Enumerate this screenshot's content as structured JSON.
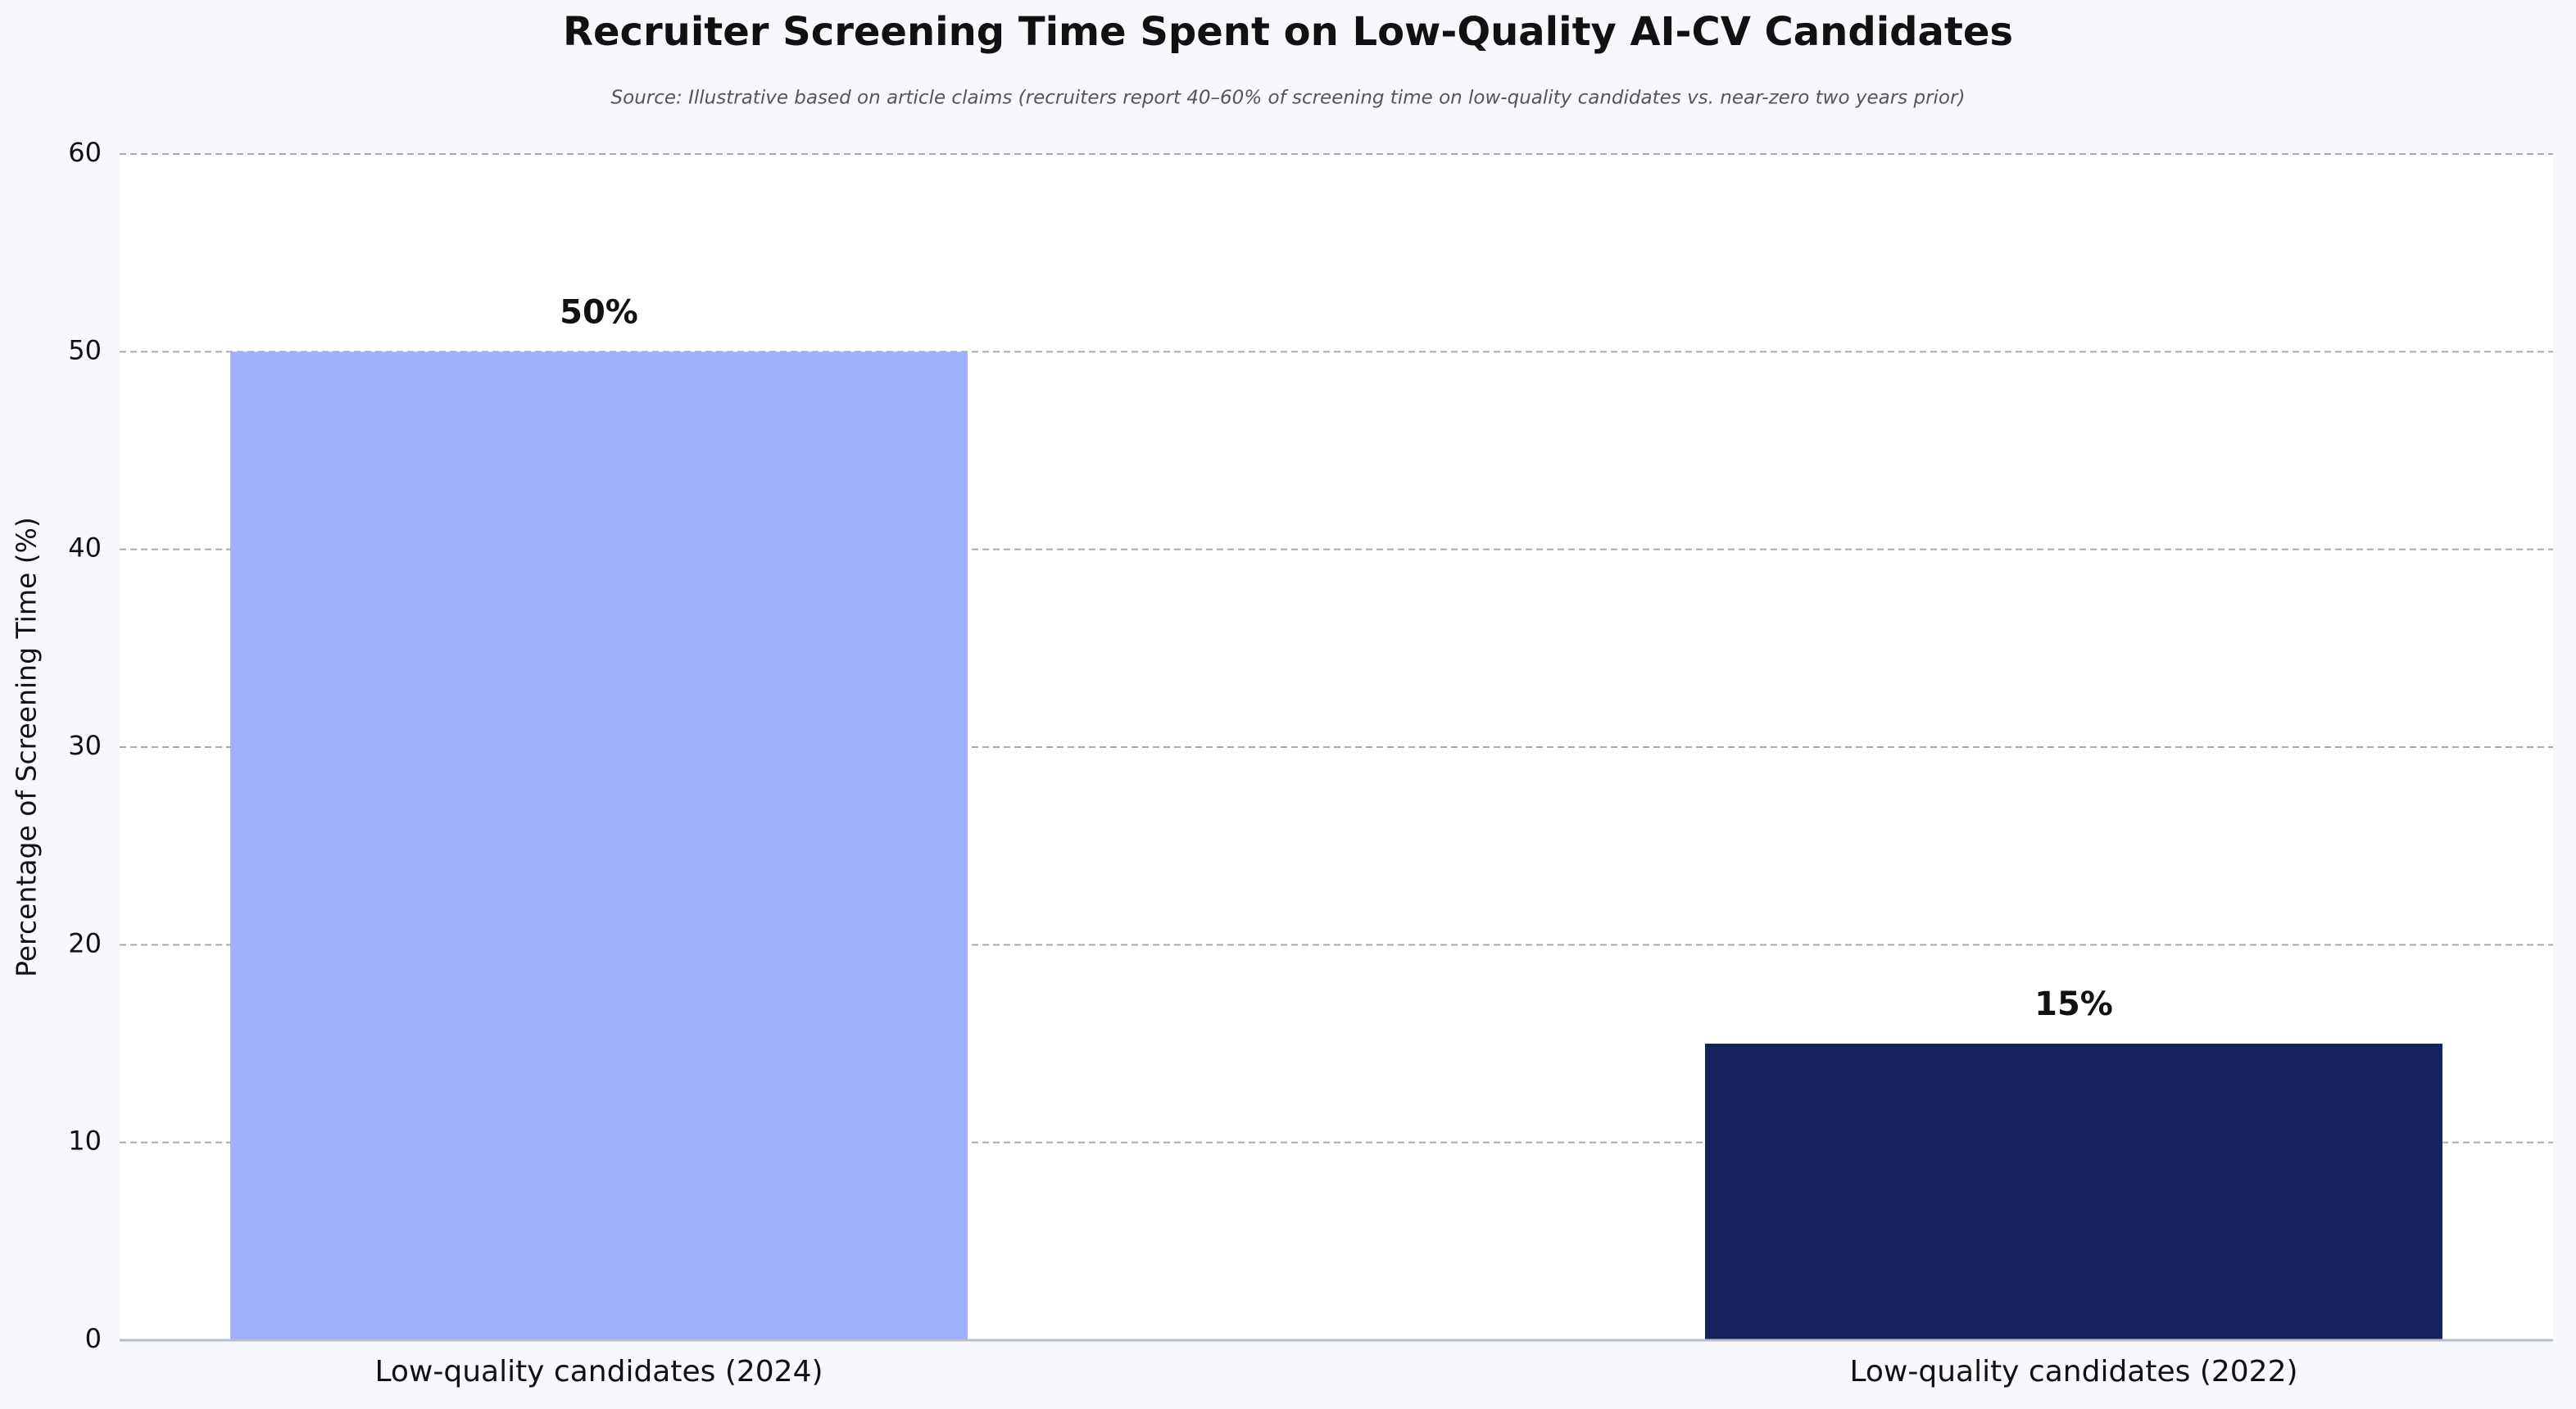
{
  "chart_data": {
    "type": "bar",
    "title": "Recruiter Screening Time Spent on Low-Quality AI-CV Candidates",
    "subtitle": "Source: Illustrative based on article claims (recruiters report 40–60% of screening time on low-quality candidates vs. near-zero two years prior)",
    "ylabel": "Percentage of Screening Time (%)",
    "categories": [
      "Low-quality candidates (2024)",
      "Low-quality candidates (2022)"
    ],
    "values": [
      50,
      15
    ],
    "value_labels": [
      "50%",
      "15%"
    ],
    "colors": [
      "#9fb0fd",
      "#15235c"
    ],
    "ylim": [
      0,
      60
    ],
    "yticks": [
      0,
      10,
      20,
      30,
      40,
      50,
      60
    ],
    "grid": true
  }
}
